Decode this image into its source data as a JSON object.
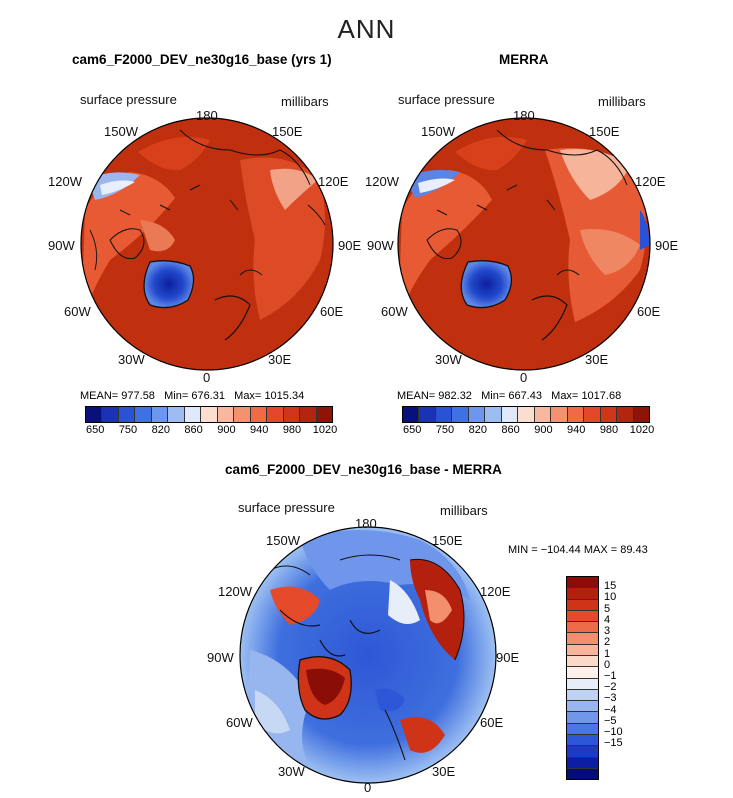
{
  "title": "ANN",
  "panels": [
    {
      "title": "cam6_F2000_DEV_ne30g16_base (yrs 1)",
      "left_label": "surface pressure",
      "right_label": "millibars",
      "stats": {
        "mean_label": "MEAN=",
        "mean": "977.58",
        "min_label": "Min=",
        "min": "676.31",
        "max_label": "Max=",
        "max": "1015.34"
      }
    },
    {
      "title": "MERRA",
      "left_label": "surface pressure",
      "right_label": "millibars",
      "stats": {
        "mean_label": "MEAN=",
        "mean": "982.32",
        "min_label": "Min=",
        "min": "667.43",
        "max_label": "Max=",
        "max": "1017.68"
      }
    }
  ],
  "diff_panel": {
    "title": "cam6_F2000_DEV_ne30g16_base - MERRA",
    "left_label": "surface pressure",
    "right_label": "millibars",
    "minmax": "MIN = −104.44 MAX =  89.43"
  },
  "lon_labels": {
    "top": "180",
    "bottom": "0",
    "w150": "150W",
    "e150": "150E",
    "w120": "120W",
    "e120": "120E",
    "w90": "90W",
    "e90": "90E",
    "w60": "60W",
    "e60": "60E",
    "w30": "30W",
    "e30": "30E"
  },
  "colorbar_horizontal": {
    "colors": [
      "#08107a",
      "#1a32b8",
      "#2a52d6",
      "#3f70e6",
      "#6d97ee",
      "#9dbcf2",
      "#dfe8f8",
      "#fbded0",
      "#f8b79f",
      "#f4916f",
      "#ef6a45",
      "#e5472a",
      "#cf3519",
      "#b5240f",
      "#8c1508"
    ],
    "labels": [
      "650",
      "750",
      "820",
      "860",
      "900",
      "940",
      "980",
      "1020"
    ]
  },
  "colorbar_vertical": {
    "colors_top_to_bottom": [
      "#8b0d08",
      "#b3200d",
      "#cf3318",
      "#e54a2b",
      "#ef6a46",
      "#f48f6e",
      "#f8b59b",
      "#fbd9c9",
      "#fdf0ea",
      "#e5eef9",
      "#bfd2f3",
      "#98b5ef",
      "#7196ea",
      "#4d76e3",
      "#2c57d7",
      "#1a3cc4",
      "#0c1fa4",
      "#040c78"
    ],
    "labels": [
      "15",
      "10",
      "5",
      "4",
      "3",
      "2",
      "1",
      "0",
      "−1",
      "−2",
      "−3",
      "−4",
      "−5",
      "−10",
      "−15"
    ]
  },
  "colors": {
    "land_high": "#c83a17",
    "ocean_pressure": "#c0300f",
    "low_blue": "#2045c8",
    "diff_ocean": "#3f6fde"
  }
}
